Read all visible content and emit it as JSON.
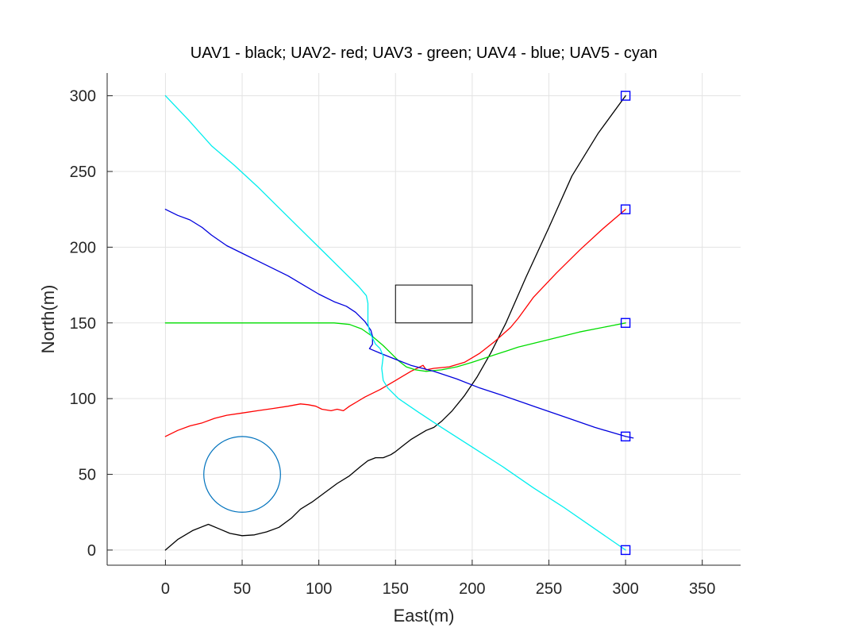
{
  "chart_data": {
    "type": "line",
    "title": "UAV1 - black; UAV2- red; UAV3 - green; UAV4 - blue; UAV5 - cyan",
    "xlabel": "East(m)",
    "ylabel": "North(m)",
    "xlim": [
      -38,
      375
    ],
    "ylim": [
      -10,
      315
    ],
    "xticks": [
      0,
      50,
      100,
      150,
      200,
      250,
      300,
      350
    ],
    "yticks": [
      0,
      50,
      100,
      150,
      200,
      250,
      300
    ],
    "grid": true,
    "series": [
      {
        "color": "#000000",
        "points": [
          [
            0,
            0
          ],
          [
            8,
            7
          ],
          [
            18,
            13
          ],
          [
            28,
            17
          ],
          [
            35,
            14
          ],
          [
            42,
            11
          ],
          [
            50,
            9.5
          ],
          [
            58,
            10
          ],
          [
            66,
            12
          ],
          [
            74,
            15
          ],
          [
            82,
            21
          ],
          [
            88,
            27
          ],
          [
            96,
            32
          ],
          [
            104,
            38
          ],
          [
            112,
            44
          ],
          [
            120,
            49
          ],
          [
            127,
            55
          ],
          [
            132,
            59
          ],
          [
            137,
            61
          ],
          [
            142,
            61
          ],
          [
            147,
            63
          ],
          [
            150,
            65
          ],
          [
            155,
            69
          ],
          [
            160,
            73
          ],
          [
            165,
            76
          ],
          [
            170,
            79
          ],
          [
            175,
            81
          ],
          [
            180,
            85
          ],
          [
            187,
            92
          ],
          [
            195,
            102
          ],
          [
            203,
            114
          ],
          [
            212,
            130
          ],
          [
            222,
            150
          ],
          [
            235,
            180
          ],
          [
            250,
            213
          ],
          [
            265,
            247
          ],
          [
            282,
            275
          ],
          [
            300,
            300
          ]
        ]
      },
      {
        "color": "#ff0000",
        "points": [
          [
            0,
            75
          ],
          [
            8,
            79
          ],
          [
            16,
            82
          ],
          [
            24,
            84
          ],
          [
            32,
            87
          ],
          [
            40,
            89
          ],
          [
            50,
            90.5
          ],
          [
            60,
            92
          ],
          [
            70,
            93.5
          ],
          [
            80,
            95
          ],
          [
            88,
            96.5
          ],
          [
            93,
            96
          ],
          [
            98,
            95
          ],
          [
            102,
            93
          ],
          [
            108,
            92
          ],
          [
            112,
            93
          ],
          [
            116,
            92
          ],
          [
            120,
            95
          ],
          [
            125,
            98
          ],
          [
            130,
            101
          ],
          [
            140,
            106
          ],
          [
            150,
            112
          ],
          [
            160,
            118
          ],
          [
            168,
            122
          ],
          [
            170,
            119
          ],
          [
            175,
            120
          ],
          [
            185,
            121
          ],
          [
            195,
            124
          ],
          [
            205,
            130
          ],
          [
            215,
            138
          ],
          [
            225,
            147
          ],
          [
            230,
            153
          ],
          [
            240,
            167
          ],
          [
            255,
            183
          ],
          [
            270,
            198
          ],
          [
            285,
            212
          ],
          [
            300,
            225
          ]
        ]
      },
      {
        "color": "#00dd00",
        "points": [
          [
            0,
            150
          ],
          [
            40,
            150
          ],
          [
            80,
            150
          ],
          [
            110,
            150
          ],
          [
            120,
            149
          ],
          [
            128,
            146
          ],
          [
            135,
            141
          ],
          [
            142,
            135
          ],
          [
            148,
            129
          ],
          [
            152,
            125
          ],
          [
            157,
            121
          ],
          [
            163,
            119
          ],
          [
            170,
            118
          ],
          [
            180,
            119
          ],
          [
            190,
            121
          ],
          [
            200,
            124
          ],
          [
            215,
            129
          ],
          [
            230,
            134
          ],
          [
            250,
            139
          ],
          [
            270,
            144
          ],
          [
            290,
            148
          ],
          [
            300,
            150
          ]
        ]
      },
      {
        "color": "#0000dd",
        "points": [
          [
            0,
            225
          ],
          [
            8,
            221
          ],
          [
            16,
            218
          ],
          [
            24,
            213
          ],
          [
            30,
            208
          ],
          [
            40,
            201
          ],
          [
            50,
            196
          ],
          [
            60,
            191
          ],
          [
            70,
            186
          ],
          [
            80,
            181
          ],
          [
            90,
            175
          ],
          [
            100,
            169
          ],
          [
            110,
            164
          ],
          [
            118,
            161
          ],
          [
            124,
            157
          ],
          [
            130,
            151
          ],
          [
            134,
            145
          ],
          [
            135,
            141
          ],
          [
            135,
            138
          ],
          [
            135,
            136
          ],
          [
            133,
            133
          ],
          [
            140,
            130
          ],
          [
            150,
            126
          ],
          [
            160,
            122
          ],
          [
            175,
            118
          ],
          [
            190,
            113
          ],
          [
            205,
            107
          ],
          [
            220,
            102
          ],
          [
            240,
            95
          ],
          [
            260,
            88
          ],
          [
            280,
            81
          ],
          [
            300,
            75
          ],
          [
            305,
            74
          ]
        ]
      },
      {
        "color": "#00eeee",
        "points": [
          [
            0,
            300
          ],
          [
            15,
            284
          ],
          [
            30,
            267
          ],
          [
            45,
            254
          ],
          [
            60,
            240
          ],
          [
            75,
            225
          ],
          [
            90,
            210
          ],
          [
            105,
            195
          ],
          [
            118,
            182
          ],
          [
            126,
            174
          ],
          [
            131,
            168
          ],
          [
            132,
            163
          ],
          [
            132,
            150
          ],
          [
            133,
            144
          ],
          [
            135,
            140
          ],
          [
            137,
            136
          ],
          [
            140,
            133
          ],
          [
            142,
            128
          ],
          [
            141,
            120
          ],
          [
            142,
            112
          ],
          [
            145,
            107
          ],
          [
            152,
            100
          ],
          [
            165,
            91
          ],
          [
            180,
            81
          ],
          [
            200,
            68
          ],
          [
            220,
            55
          ],
          [
            240,
            41
          ],
          [
            260,
            28
          ],
          [
            280,
            14
          ],
          [
            300,
            0
          ]
        ]
      }
    ],
    "markers": [
      [
        300,
        300
      ],
      [
        300,
        225
      ],
      [
        300,
        150
      ],
      [
        300,
        75
      ],
      [
        300,
        0
      ]
    ],
    "obstacles": {
      "rectangle": {
        "x": [
          150,
          200
        ],
        "y": [
          150,
          175
        ]
      },
      "circle": {
        "cx": 50,
        "cy": 50,
        "r": 25
      }
    }
  }
}
